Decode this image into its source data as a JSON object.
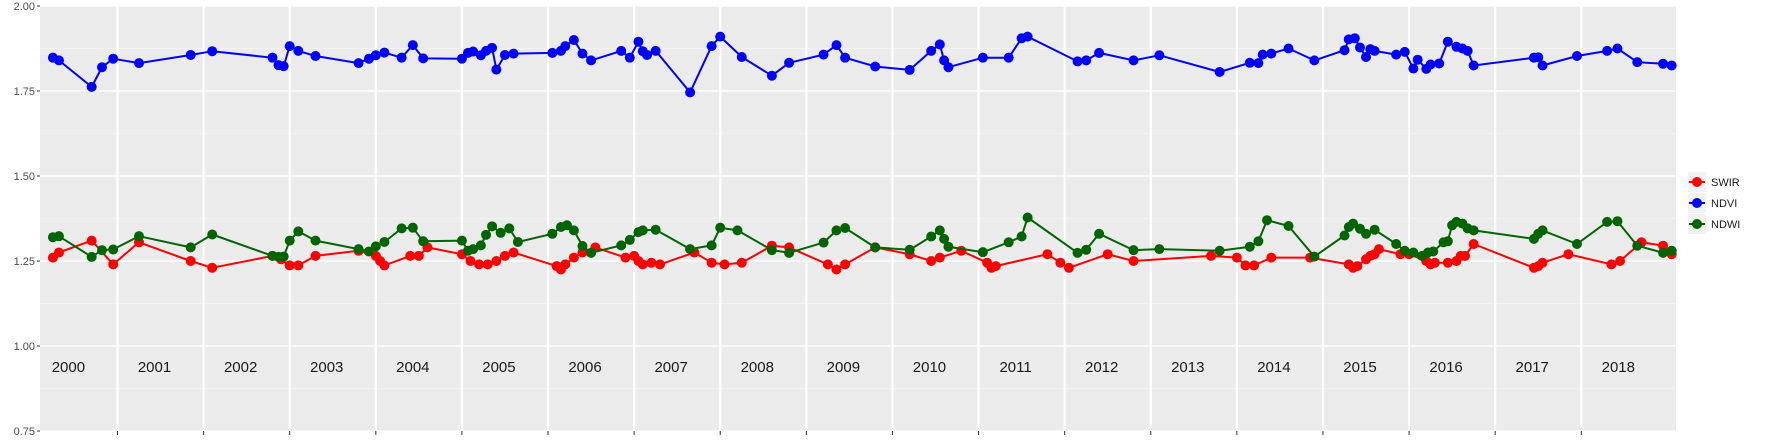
{
  "chart_data": {
    "type": "line",
    "title": "",
    "xlabel": "",
    "ylabel": "",
    "ylim": [
      0.75,
      2.0
    ],
    "y_ticks": [
      "0.75",
      "1.00",
      "1.25",
      "1.50",
      "1.75",
      "2.00"
    ],
    "years": [
      "2000",
      "2001",
      "2002",
      "2003",
      "2004",
      "2005",
      "2006",
      "2007",
      "2008",
      "2009",
      "2010",
      "2011",
      "2012",
      "2013",
      "2014",
      "2015",
      "2016",
      "2017",
      "2018"
    ],
    "x_domain": [
      1999.6,
      2018.6
    ],
    "grid": true,
    "legend_position": "right",
    "series": [
      {
        "name": "SWIR",
        "color": "#ff0000",
        "points": [
          [
            1999.75,
            1.26
          ],
          [
            1999.82,
            1.275
          ],
          [
            2000.2,
            1.31
          ],
          [
            2000.45,
            1.24
          ],
          [
            2000.75,
            1.305
          ],
          [
            2001.35,
            1.25
          ],
          [
            2001.6,
            1.23
          ],
          [
            2002.3,
            1.265
          ],
          [
            2002.4,
            1.255
          ],
          [
            2002.5,
            1.237
          ],
          [
            2002.6,
            1.237
          ],
          [
            2002.8,
            1.265
          ],
          [
            2003.3,
            1.28
          ],
          [
            2003.5,
            1.265
          ],
          [
            2003.55,
            1.25
          ],
          [
            2003.6,
            1.237
          ],
          [
            2003.9,
            1.265
          ],
          [
            2004.0,
            1.265
          ],
          [
            2004.1,
            1.29
          ],
          [
            2004.5,
            1.27
          ],
          [
            2004.6,
            1.25
          ],
          [
            2004.7,
            1.24
          ],
          [
            2004.8,
            1.24
          ],
          [
            2004.9,
            1.25
          ],
          [
            2005.0,
            1.265
          ],
          [
            2005.1,
            1.275
          ],
          [
            2005.6,
            1.235
          ],
          [
            2005.65,
            1.225
          ],
          [
            2005.7,
            1.24
          ],
          [
            2005.8,
            1.26
          ],
          [
            2005.9,
            1.275
          ],
          [
            2006.05,
            1.29
          ],
          [
            2006.4,
            1.26
          ],
          [
            2006.5,
            1.265
          ],
          [
            2006.55,
            1.25
          ],
          [
            2006.6,
            1.24
          ],
          [
            2006.7,
            1.245
          ],
          [
            2006.8,
            1.24
          ],
          [
            2007.2,
            1.275
          ],
          [
            2007.4,
            1.245
          ],
          [
            2007.55,
            1.24
          ],
          [
            2007.75,
            1.245
          ],
          [
            2008.1,
            1.295
          ],
          [
            2008.3,
            1.29
          ],
          [
            2008.75,
            1.24
          ],
          [
            2008.85,
            1.225
          ],
          [
            2008.95,
            1.24
          ],
          [
            2009.3,
            1.29
          ],
          [
            2009.7,
            1.27
          ],
          [
            2009.95,
            1.25
          ],
          [
            2010.05,
            1.26
          ],
          [
            2010.3,
            1.28
          ],
          [
            2010.6,
            1.245
          ],
          [
            2010.65,
            1.23
          ],
          [
            2010.7,
            1.235
          ],
          [
            2011.3,
            1.27
          ],
          [
            2011.45,
            1.245
          ],
          [
            2011.55,
            1.23
          ],
          [
            2012.0,
            1.27
          ],
          [
            2012.3,
            1.25
          ],
          [
            2013.2,
            1.265
          ],
          [
            2013.5,
            1.26
          ],
          [
            2013.6,
            1.237
          ],
          [
            2013.7,
            1.237
          ],
          [
            2013.9,
            1.26
          ],
          [
            2014.35,
            1.26
          ],
          [
            2014.8,
            1.24
          ],
          [
            2014.85,
            1.23
          ],
          [
            2014.9,
            1.235
          ],
          [
            2015.0,
            1.255
          ],
          [
            2015.05,
            1.265
          ],
          [
            2015.1,
            1.27
          ],
          [
            2015.15,
            1.285
          ],
          [
            2015.4,
            1.27
          ],
          [
            2015.5,
            1.27
          ],
          [
            2015.7,
            1.25
          ],
          [
            2015.75,
            1.24
          ],
          [
            2015.8,
            1.245
          ],
          [
            2015.95,
            1.245
          ],
          [
            2016.05,
            1.25
          ],
          [
            2016.1,
            1.265
          ],
          [
            2016.15,
            1.265
          ],
          [
            2016.25,
            1.3
          ],
          [
            2016.95,
            1.23
          ],
          [
            2017.0,
            1.235
          ],
          [
            2017.05,
            1.245
          ],
          [
            2017.35,
            1.27
          ],
          [
            2017.85,
            1.24
          ],
          [
            2017.95,
            1.25
          ],
          [
            2018.2,
            1.305
          ],
          [
            2018.45,
            1.295
          ],
          [
            2018.55,
            1.27
          ]
        ]
      },
      {
        "name": "NDVI",
        "color": "#0000ff",
        "points": [
          [
            1999.75,
            1.848
          ],
          [
            1999.82,
            1.84
          ],
          [
            2000.2,
            1.762
          ],
          [
            2000.32,
            1.82
          ],
          [
            2000.45,
            1.845
          ],
          [
            2000.75,
            1.832
          ],
          [
            2001.35,
            1.856
          ],
          [
            2001.6,
            1.867
          ],
          [
            2002.3,
            1.848
          ],
          [
            2002.37,
            1.826
          ],
          [
            2002.43,
            1.823
          ],
          [
            2002.5,
            1.882
          ],
          [
            2002.6,
            1.868
          ],
          [
            2002.8,
            1.853
          ],
          [
            2003.3,
            1.832
          ],
          [
            2003.42,
            1.845
          ],
          [
            2003.5,
            1.855
          ],
          [
            2003.6,
            1.863
          ],
          [
            2003.8,
            1.848
          ],
          [
            2003.93,
            1.885
          ],
          [
            2004.05,
            1.846
          ],
          [
            2004.5,
            1.845
          ],
          [
            2004.57,
            1.862
          ],
          [
            2004.63,
            1.866
          ],
          [
            2004.72,
            1.855
          ],
          [
            2004.78,
            1.868
          ],
          [
            2004.85,
            1.877
          ],
          [
            2004.9,
            1.813
          ],
          [
            2005.0,
            1.856
          ],
          [
            2005.1,
            1.86
          ],
          [
            2005.55,
            1.862
          ],
          [
            2005.65,
            1.868
          ],
          [
            2005.7,
            1.882
          ],
          [
            2005.8,
            1.9
          ],
          [
            2005.9,
            1.86
          ],
          [
            2006.0,
            1.84
          ],
          [
            2006.35,
            1.868
          ],
          [
            2006.45,
            1.848
          ],
          [
            2006.55,
            1.895
          ],
          [
            2006.6,
            1.867
          ],
          [
            2006.65,
            1.856
          ],
          [
            2006.75,
            1.868
          ],
          [
            2007.15,
            1.746
          ],
          [
            2007.4,
            1.882
          ],
          [
            2007.5,
            1.91
          ],
          [
            2007.75,
            1.85
          ],
          [
            2008.1,
            1.795
          ],
          [
            2008.3,
            1.833
          ],
          [
            2008.7,
            1.857
          ],
          [
            2008.85,
            1.885
          ],
          [
            2008.95,
            1.848
          ],
          [
            2009.3,
            1.822
          ],
          [
            2009.7,
            1.812
          ],
          [
            2009.95,
            1.868
          ],
          [
            2010.05,
            1.887
          ],
          [
            2010.1,
            1.84
          ],
          [
            2010.15,
            1.82
          ],
          [
            2010.55,
            1.848
          ],
          [
            2010.85,
            1.848
          ],
          [
            2011.0,
            1.905
          ],
          [
            2011.07,
            1.91
          ],
          [
            2011.65,
            1.837
          ],
          [
            2011.75,
            1.84
          ],
          [
            2011.9,
            1.862
          ],
          [
            2012.3,
            1.84
          ],
          [
            2012.6,
            1.855
          ],
          [
            2013.3,
            1.806
          ],
          [
            2013.65,
            1.833
          ],
          [
            2013.75,
            1.832
          ],
          [
            2013.8,
            1.857
          ],
          [
            2013.9,
            1.86
          ],
          [
            2014.1,
            1.875
          ],
          [
            2014.4,
            1.84
          ],
          [
            2014.75,
            1.87
          ],
          [
            2014.8,
            1.902
          ],
          [
            2014.87,
            1.905
          ],
          [
            2014.93,
            1.878
          ],
          [
            2015.0,
            1.85
          ],
          [
            2015.05,
            1.873
          ],
          [
            2015.1,
            1.868
          ],
          [
            2015.35,
            1.857
          ],
          [
            2015.45,
            1.865
          ],
          [
            2015.55,
            1.816
          ],
          [
            2015.6,
            1.842
          ],
          [
            2015.7,
            1.815
          ],
          [
            2015.75,
            1.828
          ],
          [
            2015.85,
            1.831
          ],
          [
            2015.95,
            1.895
          ],
          [
            2016.05,
            1.88
          ],
          [
            2016.12,
            1.875
          ],
          [
            2016.18,
            1.868
          ],
          [
            2016.25,
            1.825
          ],
          [
            2016.95,
            1.848
          ],
          [
            2017.0,
            1.849
          ],
          [
            2017.05,
            1.825
          ],
          [
            2017.45,
            1.853
          ],
          [
            2017.8,
            1.868
          ],
          [
            2017.92,
            1.875
          ],
          [
            2018.15,
            1.835
          ],
          [
            2018.45,
            1.83
          ],
          [
            2018.55,
            1.825
          ]
        ]
      },
      {
        "name": "NDWI",
        "color": "#006400",
        "points": [
          [
            1999.75,
            1.32
          ],
          [
            1999.82,
            1.323
          ],
          [
            2000.2,
            1.262
          ],
          [
            2000.32,
            1.282
          ],
          [
            2000.45,
            1.284
          ],
          [
            2000.75,
            1.323
          ],
          [
            2001.35,
            1.29
          ],
          [
            2001.6,
            1.328
          ],
          [
            2002.3,
            1.265
          ],
          [
            2002.37,
            1.262
          ],
          [
            2002.43,
            1.263
          ],
          [
            2002.5,
            1.31
          ],
          [
            2002.6,
            1.337
          ],
          [
            2002.8,
            1.31
          ],
          [
            2003.3,
            1.285
          ],
          [
            2003.42,
            1.278
          ],
          [
            2003.5,
            1.293
          ],
          [
            2003.6,
            1.306
          ],
          [
            2003.8,
            1.346
          ],
          [
            2003.93,
            1.348
          ],
          [
            2004.05,
            1.308
          ],
          [
            2004.5,
            1.31
          ],
          [
            2004.57,
            1.28
          ],
          [
            2004.63,
            1.285
          ],
          [
            2004.72,
            1.296
          ],
          [
            2004.78,
            1.327
          ],
          [
            2004.85,
            1.352
          ],
          [
            2004.95,
            1.333
          ],
          [
            2005.05,
            1.346
          ],
          [
            2005.15,
            1.306
          ],
          [
            2005.55,
            1.33
          ],
          [
            2005.65,
            1.35
          ],
          [
            2005.72,
            1.355
          ],
          [
            2005.8,
            1.34
          ],
          [
            2005.9,
            1.294
          ],
          [
            2006.0,
            1.274
          ],
          [
            2006.35,
            1.296
          ],
          [
            2006.45,
            1.312
          ],
          [
            2006.55,
            1.335
          ],
          [
            2006.6,
            1.34
          ],
          [
            2006.75,
            1.342
          ],
          [
            2007.15,
            1.285
          ],
          [
            2007.4,
            1.296
          ],
          [
            2007.5,
            1.348
          ],
          [
            2007.7,
            1.34
          ],
          [
            2008.1,
            1.282
          ],
          [
            2008.3,
            1.274
          ],
          [
            2008.7,
            1.304
          ],
          [
            2008.85,
            1.34
          ],
          [
            2008.95,
            1.347
          ],
          [
            2009.3,
            1.29
          ],
          [
            2009.7,
            1.283
          ],
          [
            2009.95,
            1.322
          ],
          [
            2010.05,
            1.34
          ],
          [
            2010.1,
            1.315
          ],
          [
            2010.15,
            1.292
          ],
          [
            2010.55,
            1.276
          ],
          [
            2010.85,
            1.305
          ],
          [
            2011.0,
            1.322
          ],
          [
            2011.07,
            1.378
          ],
          [
            2011.65,
            1.274
          ],
          [
            2011.75,
            1.283
          ],
          [
            2011.9,
            1.33
          ],
          [
            2012.3,
            1.282
          ],
          [
            2012.6,
            1.285
          ],
          [
            2013.3,
            1.28
          ],
          [
            2013.65,
            1.292
          ],
          [
            2013.75,
            1.308
          ],
          [
            2013.85,
            1.37
          ],
          [
            2014.1,
            1.353
          ],
          [
            2014.4,
            1.263
          ],
          [
            2014.75,
            1.325
          ],
          [
            2014.8,
            1.35
          ],
          [
            2014.85,
            1.36
          ],
          [
            2014.93,
            1.345
          ],
          [
            2015.0,
            1.33
          ],
          [
            2015.1,
            1.342
          ],
          [
            2015.35,
            1.3
          ],
          [
            2015.45,
            1.28
          ],
          [
            2015.55,
            1.275
          ],
          [
            2015.65,
            1.265
          ],
          [
            2015.72,
            1.275
          ],
          [
            2015.78,
            1.278
          ],
          [
            2015.9,
            1.305
          ],
          [
            2015.95,
            1.308
          ],
          [
            2016.0,
            1.355
          ],
          [
            2016.05,
            1.365
          ],
          [
            2016.12,
            1.36
          ],
          [
            2016.18,
            1.346
          ],
          [
            2016.25,
            1.34
          ],
          [
            2016.95,
            1.315
          ],
          [
            2017.0,
            1.33
          ],
          [
            2017.05,
            1.34
          ],
          [
            2017.45,
            1.3
          ],
          [
            2017.8,
            1.365
          ],
          [
            2017.92,
            1.367
          ],
          [
            2018.15,
            1.295
          ],
          [
            2018.45,
            1.274
          ],
          [
            2018.55,
            1.28
          ]
        ]
      }
    ]
  }
}
